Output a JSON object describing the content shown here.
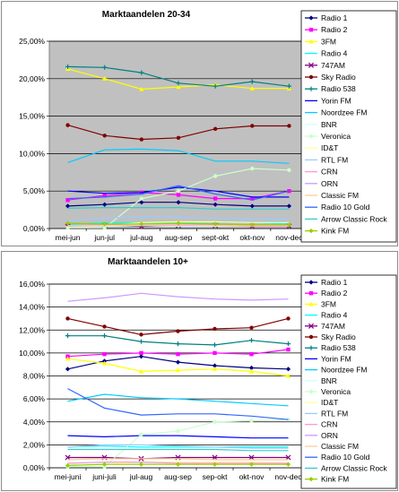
{
  "chart_data": [
    {
      "type": "line",
      "title": "Marktaandelen 20-34",
      "categories": [
        "mei-jun",
        "jun-jul",
        "jul-aug",
        "aug-sep",
        "sept-okt",
        "okt-nov",
        "nov-dec"
      ],
      "ylim": [
        0,
        25
      ],
      "yticks": [
        "0,00%",
        "5,00%",
        "10,00%",
        "15,00%",
        "20,00%",
        "25,00%"
      ],
      "y_unit": "%",
      "grid": true,
      "plot_background": "#c0c0c0",
      "legend": "right",
      "series": [
        {
          "name": "Radio 1",
          "color": "#000080",
          "marker": "diamond",
          "values": [
            3.0,
            3.2,
            3.5,
            3.5,
            3.2,
            3.0,
            3.0
          ]
        },
        {
          "name": "Radio 2",
          "color": "#ff00ff",
          "marker": "square",
          "values": [
            3.8,
            4.4,
            4.8,
            4.5,
            4.0,
            4.0,
            5.0
          ]
        },
        {
          "name": "3FM",
          "color": "#ffff00",
          "marker": "triangle",
          "values": [
            21.3,
            20.0,
            18.6,
            18.9,
            19.2,
            18.7,
            18.7
          ]
        },
        {
          "name": "Radio 4",
          "color": "#00ffff",
          "marker": "none",
          "values": [
            0.5,
            0.8,
            0.8,
            0.8,
            0.9,
            0.8,
            0.6
          ]
        },
        {
          "name": "747AM",
          "color": "#800080",
          "marker": "star",
          "values": [
            0.3,
            0.4,
            0.3,
            0.4,
            0.4,
            0.3,
            0.3
          ]
        },
        {
          "name": "Sky Radio",
          "color": "#800000",
          "marker": "circle",
          "values": [
            13.8,
            12.4,
            11.9,
            12.1,
            13.3,
            13.7,
            13.7
          ]
        },
        {
          "name": "Radio 538",
          "color": "#008080",
          "marker": "plus",
          "values": [
            21.6,
            21.5,
            20.8,
            19.4,
            19.0,
            19.6,
            19.0
          ]
        },
        {
          "name": "Yorin FM",
          "color": "#0000ff",
          "marker": "none",
          "values": [
            5.0,
            4.7,
            4.8,
            5.5,
            5.0,
            4.2,
            4.2
          ]
        },
        {
          "name": "Noordzee FM",
          "color": "#00ccff",
          "marker": "none",
          "values": [
            8.8,
            10.5,
            10.6,
            10.4,
            9.0,
            9.0,
            8.7
          ]
        },
        {
          "name": "BNR",
          "color": "#ccffff",
          "marker": "none",
          "values": [
            0.2,
            0.3,
            0.4,
            0.3,
            0.3,
            0.3,
            0.3
          ]
        },
        {
          "name": "Veronica",
          "color": "#ccffcc",
          "marker": "circle",
          "values": [
            0.1,
            0.1,
            4.0,
            5.0,
            7.0,
            8.0,
            7.8
          ]
        },
        {
          "name": "ID&T",
          "color": "#ffff99",
          "marker": "none",
          "values": [
            0.2,
            0.4,
            0.8,
            0.9,
            0.9,
            0.8,
            0.8
          ]
        },
        {
          "name": "RTL FM",
          "color": "#99ccff",
          "marker": "none",
          "values": [
            1.0,
            1.4,
            1.6,
            1.5,
            1.4,
            1.2,
            1.3
          ]
        },
        {
          "name": "CRN",
          "color": "#ff99cc",
          "marker": "none",
          "values": [
            0.3,
            0.4,
            0.5,
            0.4,
            0.4,
            0.3,
            0.3
          ]
        },
        {
          "name": "ORN",
          "color": "#cc99ff",
          "marker": "none",
          "values": [
            0.4,
            0.5,
            0.6,
            0.6,
            0.5,
            0.5,
            0.5
          ]
        },
        {
          "name": "Classic FM",
          "color": "#ffcc99",
          "marker": "none",
          "values": [
            0.4,
            0.4,
            0.5,
            0.5,
            0.4,
            0.4,
            0.4
          ]
        },
        {
          "name": "Radio 10 Gold",
          "color": "#3366ff",
          "marker": "none",
          "values": [
            4.0,
            4.2,
            4.6,
            5.7,
            4.6,
            3.8,
            5.0
          ]
        },
        {
          "name": "Arrow Classic Rock",
          "color": "#33cccc",
          "marker": "none",
          "values": [
            2.7,
            2.8,
            2.8,
            2.8,
            2.6,
            2.6,
            2.6
          ]
        },
        {
          "name": "Kink FM",
          "color": "#99cc00",
          "marker": "diamond",
          "values": [
            0.7,
            0.6,
            0.6,
            0.7,
            0.6,
            0.5,
            0.5
          ]
        }
      ]
    },
    {
      "type": "line",
      "title": "Marktaandelen 10+",
      "categories": [
        "mei-juni",
        "juni-juli",
        "jul-aug",
        "aug-sep",
        "sep-okt",
        "okt-nov",
        "nov-dec"
      ],
      "ylim": [
        0,
        16
      ],
      "yticks": [
        "0,00%",
        "2,00%",
        "4,00%",
        "6,00%",
        "8,00%",
        "10,00%",
        "12,00%",
        "14,00%",
        "16,00%"
      ],
      "y_unit": "%",
      "grid": true,
      "plot_background": "#ffffff",
      "legend": "right",
      "series": [
        {
          "name": "Radio 1",
          "color": "#000080",
          "marker": "diamond",
          "values": [
            8.6,
            9.3,
            9.7,
            9.2,
            8.9,
            8.7,
            8.6
          ]
        },
        {
          "name": "Radio 2",
          "color": "#ff00ff",
          "marker": "square",
          "values": [
            9.7,
            9.9,
            10.0,
            9.9,
            10.0,
            9.9,
            10.3
          ]
        },
        {
          "name": "3FM",
          "color": "#ffff00",
          "marker": "triangle",
          "values": [
            9.5,
            9.1,
            8.4,
            8.5,
            8.6,
            8.4,
            8.0
          ]
        },
        {
          "name": "Radio 4",
          "color": "#00ffff",
          "marker": "none",
          "values": [
            1.8,
            1.9,
            1.8,
            1.8,
            1.8,
            1.8,
            1.8
          ]
        },
        {
          "name": "747AM",
          "color": "#800080",
          "marker": "star",
          "values": [
            0.9,
            0.9,
            0.8,
            0.9,
            0.9,
            0.9,
            0.9
          ]
        },
        {
          "name": "Sky Radio",
          "color": "#800000",
          "marker": "circle",
          "values": [
            13.0,
            12.3,
            11.6,
            11.9,
            12.1,
            12.2,
            13.0
          ]
        },
        {
          "name": "Radio 538",
          "color": "#008080",
          "marker": "plus",
          "values": [
            11.5,
            11.5,
            11.0,
            10.8,
            10.7,
            11.1,
            10.8
          ]
        },
        {
          "name": "Yorin FM",
          "color": "#0000ff",
          "marker": "none",
          "values": [
            2.8,
            2.7,
            2.8,
            2.8,
            2.7,
            2.6,
            2.6
          ]
        },
        {
          "name": "Noordzee FM",
          "color": "#00ccff",
          "marker": "none",
          "values": [
            5.8,
            6.4,
            6.1,
            6.0,
            5.8,
            5.6,
            5.4
          ]
        },
        {
          "name": "BNR",
          "color": "#ccffff",
          "marker": "none",
          "values": [
            0.3,
            0.4,
            0.4,
            0.4,
            0.4,
            0.4,
            0.4
          ]
        },
        {
          "name": "Veronica",
          "color": "#ccffcc",
          "marker": "circle",
          "values": [
            0.1,
            0.1,
            2.9,
            3.2,
            4.0,
            4.1,
            4.2
          ]
        },
        {
          "name": "ID&T",
          "color": "#ffff99",
          "marker": "none",
          "values": [
            0.2,
            0.3,
            0.5,
            0.5,
            0.5,
            0.5,
            0.4
          ]
        },
        {
          "name": "RTL FM",
          "color": "#99ccff",
          "marker": "none",
          "values": [
            1.8,
            2.0,
            2.0,
            1.9,
            1.8,
            1.7,
            1.7
          ]
        },
        {
          "name": "CRN",
          "color": "#ff99cc",
          "marker": "none",
          "values": [
            0.4,
            0.5,
            0.5,
            0.4,
            0.4,
            0.4,
            0.4
          ]
        },
        {
          "name": "ORN",
          "color": "#cc99ff",
          "marker": "none",
          "values": [
            14.5,
            14.8,
            15.2,
            14.9,
            14.7,
            14.6,
            14.7
          ]
        },
        {
          "name": "Classic FM",
          "color": "#ffcc99",
          "marker": "none",
          "values": [
            0.7,
            0.8,
            0.8,
            0.8,
            0.7,
            0.7,
            0.7
          ]
        },
        {
          "name": "Radio 10 Gold",
          "color": "#3366ff",
          "marker": "none",
          "values": [
            6.9,
            5.2,
            4.6,
            4.7,
            4.7,
            4.5,
            4.2
          ]
        },
        {
          "name": "Arrow Classic Rock",
          "color": "#33cccc",
          "marker": "none",
          "values": [
            1.6,
            1.6,
            1.6,
            1.6,
            1.6,
            1.5,
            1.5
          ]
        },
        {
          "name": "Kink FM",
          "color": "#99cc00",
          "marker": "diamond",
          "values": [
            0.2,
            0.3,
            0.3,
            0.3,
            0.3,
            0.3,
            0.3
          ]
        }
      ]
    }
  ]
}
